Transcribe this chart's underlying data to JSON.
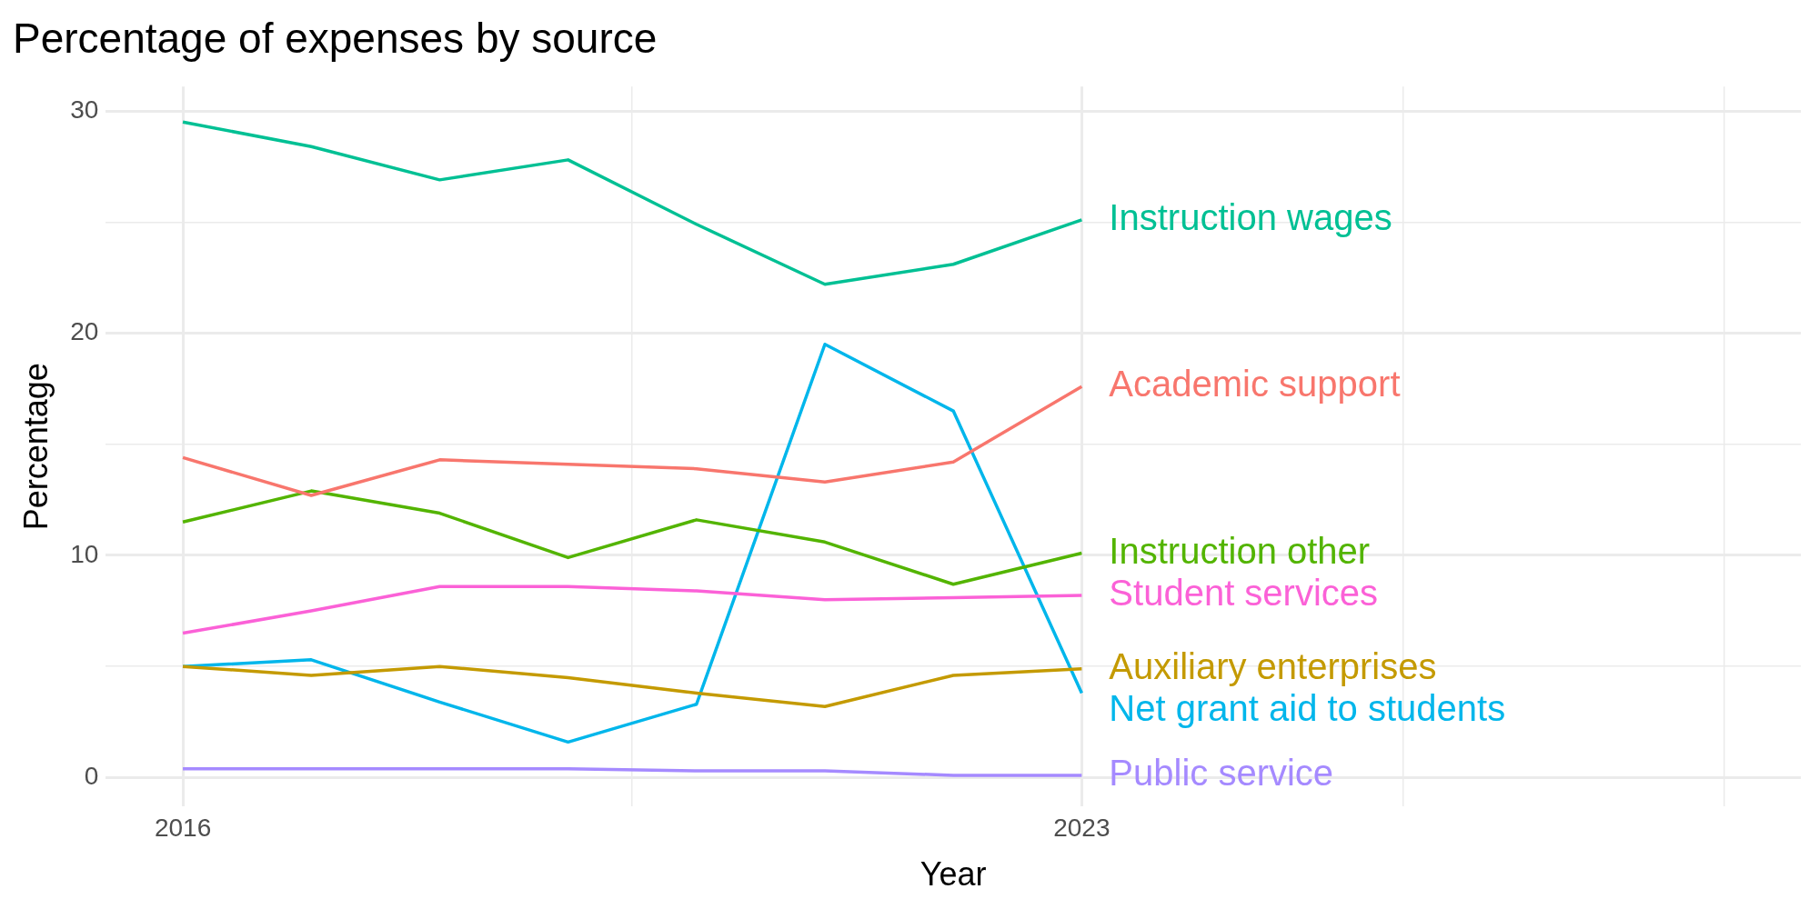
{
  "chart_data": {
    "type": "line",
    "title": "Percentage of expenses by source",
    "xlabel": "Year",
    "ylabel": "Percentage",
    "x": [
      2016,
      2017,
      2018,
      2019,
      2020,
      2021,
      2022,
      2023
    ],
    "series": [
      {
        "name": "Instruction wages",
        "color": "#00c094",
        "values": [
          29.5,
          28.4,
          26.9,
          27.8,
          24.9,
          22.2,
          23.1,
          25.1
        ]
      },
      {
        "name": "Academic support",
        "color": "#f8766d",
        "values": [
          14.4,
          12.7,
          14.3,
          14.1,
          13.9,
          13.3,
          14.2,
          17.6
        ]
      },
      {
        "name": "Instruction other",
        "color": "#53b400",
        "values": [
          11.5,
          12.9,
          11.9,
          9.9,
          11.6,
          10.6,
          8.7,
          10.1
        ]
      },
      {
        "name": "Student services",
        "color": "#fb61d7",
        "values": [
          6.5,
          7.5,
          8.6,
          8.6,
          8.4,
          8.0,
          8.1,
          8.2
        ]
      },
      {
        "name": "Auxiliary enterprises",
        "color": "#c49a00",
        "values": [
          5.0,
          4.6,
          5.0,
          4.5,
          3.8,
          3.2,
          4.6,
          4.9
        ]
      },
      {
        "name": "Net grant aid to students",
        "color": "#00b6eb",
        "values": [
          5.0,
          5.3,
          3.4,
          1.6,
          3.3,
          19.5,
          16.5,
          3.8
        ]
      },
      {
        "name": "Public service",
        "color": "#a58aff",
        "values": [
          0.4,
          0.4,
          0.4,
          0.4,
          0.3,
          0.3,
          0.1,
          0.1
        ]
      }
    ],
    "xlim": [
      2015.4,
      2028.6
    ],
    "xticks": [
      2016,
      {
        "value": 2019.5,
        "label": null
      },
      2023,
      {
        "value": 2025.5,
        "label": null
      },
      {
        "value": 2028,
        "label": null
      }
    ],
    "ylim": [
      -1.3,
      31.1
    ],
    "yticks": [
      0,
      {
        "value": 5,
        "label": null
      },
      10,
      {
        "value": 15,
        "label": null
      },
      20,
      {
        "value": 25,
        "label": null
      },
      30
    ],
    "grid": true,
    "legend": false,
    "marker": "none",
    "line_style": "solid"
  }
}
